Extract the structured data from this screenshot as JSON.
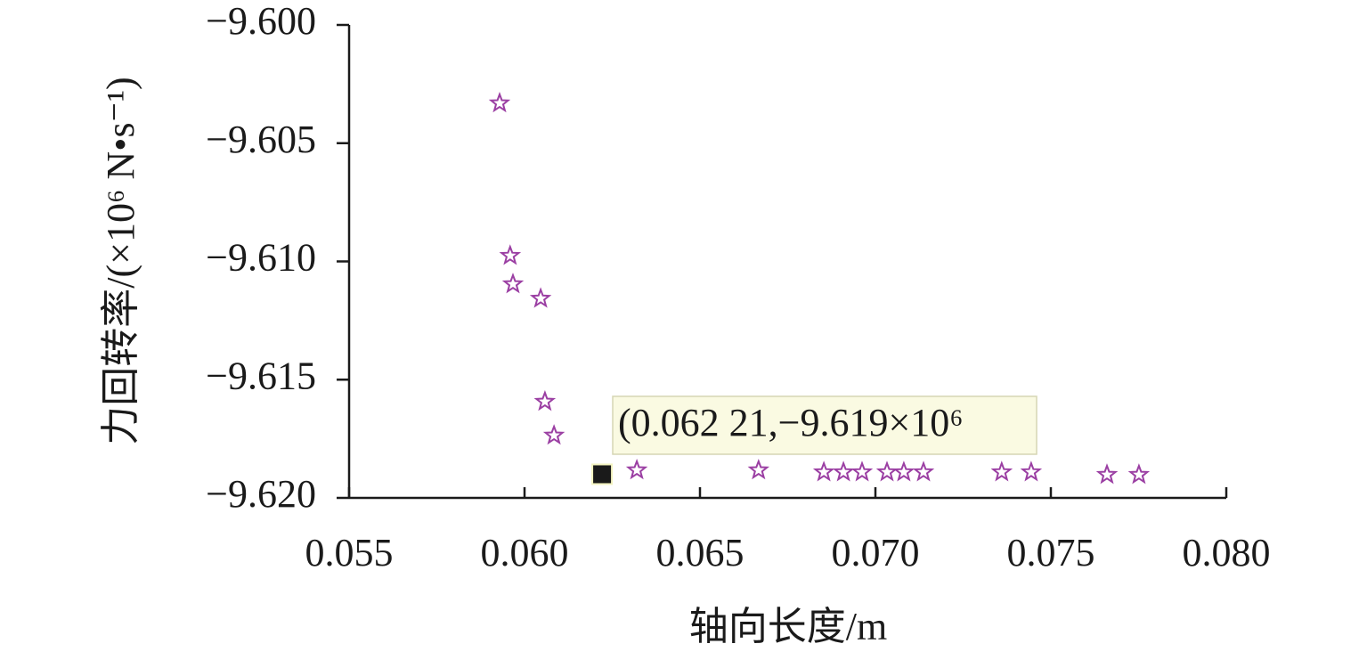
{
  "chart_data": {
    "type": "scatter",
    "xlabel": "轴向长度/m",
    "ylabel": "力回转率/(×10⁶ N•s⁻¹)",
    "color": "#9b3fa3",
    "x": [
      0.05929,
      0.05959,
      0.05967,
      0.06046,
      0.06058,
      0.06084,
      0.0632,
      0.06667,
      0.06853,
      0.06909,
      0.06962,
      0.07033,
      0.07081,
      0.07137,
      0.0736,
      0.07444,
      0.0766,
      0.07751
    ],
    "values": [
      -9.60331,
      -9.60976,
      -9.61096,
      -9.61157,
      -9.61593,
      -9.61736,
      -9.61883,
      -9.61883,
      -9.61891,
      -9.61891,
      -9.61891,
      -9.61891,
      -9.61891,
      -9.61891,
      -9.61891,
      -9.61891,
      -9.61902,
      -9.61902
    ],
    "highlight": {
      "x": 0.06221,
      "y": -9.619,
      "label": "(0.062 21,−9.619×10⁶",
      "color": "#1a1a1a"
    },
    "xlim": [
      0.055,
      0.08
    ],
    "xticks": [
      0.055,
      {
        "value": 0.06,
        "label": "0.060"
      },
      0.065,
      {
        "value": 0.07,
        "label": "0.070"
      },
      0.075,
      {
        "value": 0.08,
        "label": "0.080"
      }
    ],
    "ylim": [
      -9.62,
      -9.6
    ],
    "yticks": [
      {
        "value": -9.6,
        "label": "−9.600"
      },
      {
        "value": -9.605,
        "label": "−9.605"
      },
      {
        "value": -9.61,
        "label": "−9.610"
      },
      {
        "value": -9.615,
        "label": "−9.615"
      },
      {
        "value": -9.62,
        "label": "−9.620"
      }
    ]
  }
}
